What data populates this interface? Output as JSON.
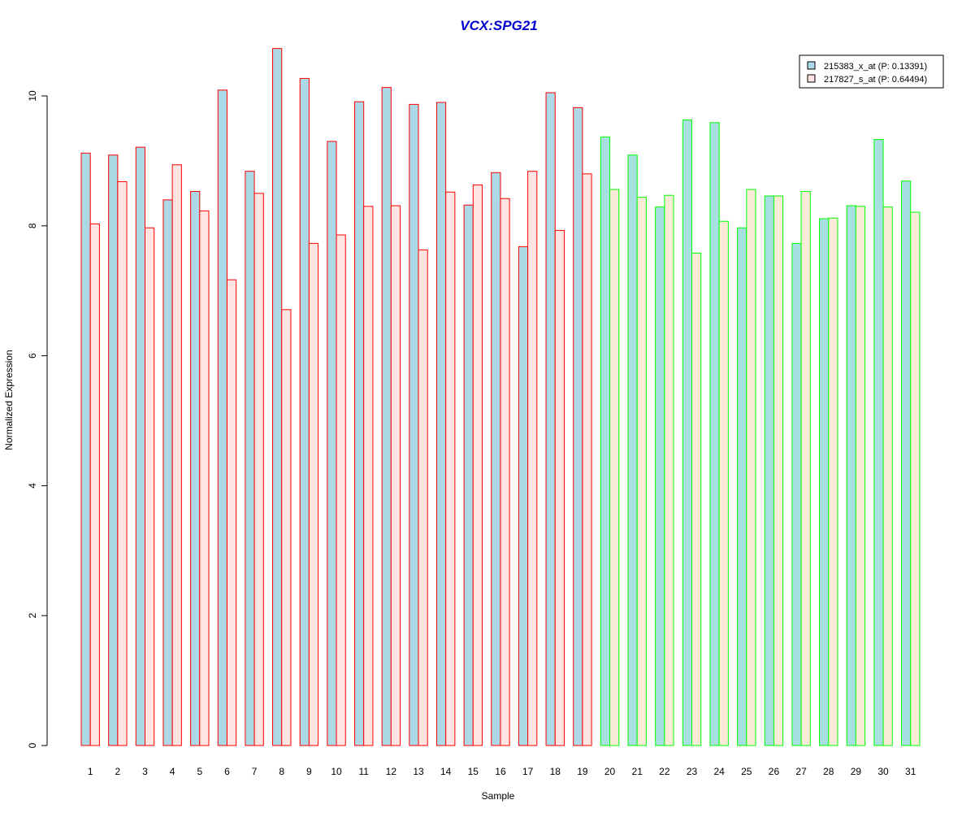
{
  "chart_data": {
    "type": "bar",
    "title": "VCX:SPG21",
    "xlabel": "Sample",
    "ylabel": "Normalized Expression",
    "ylim": [
      0,
      10.75
    ],
    "yticks": [
      0,
      2,
      4,
      6,
      8,
      10
    ],
    "categories": [
      "1",
      "2",
      "3",
      "4",
      "5",
      "6",
      "7",
      "8",
      "9",
      "10",
      "11",
      "12",
      "13",
      "14",
      "15",
      "16",
      "17",
      "18",
      "19",
      "20",
      "21",
      "22",
      "23",
      "24",
      "25",
      "26",
      "27",
      "28",
      "29",
      "30",
      "31"
    ],
    "series": [
      {
        "name": "215383_x_at (P: 0.13391)",
        "fill": "#add8e6",
        "values": [
          9.12,
          9.09,
          9.21,
          8.4,
          8.53,
          10.09,
          8.84,
          10.73,
          10.27,
          9.3,
          9.91,
          10.13,
          9.87,
          9.9,
          8.32,
          8.82,
          7.68,
          10.05,
          9.82,
          9.37,
          9.09,
          8.29,
          9.63,
          9.59,
          7.97,
          8.46,
          7.73,
          8.11,
          8.31,
          9.33,
          8.69
        ]
      },
      {
        "name": "217827_s_at (P: 0.64494)",
        "fill": "#ffe4e1",
        "values": [
          8.03,
          8.68,
          7.97,
          8.94,
          8.23,
          7.17,
          8.5,
          6.71,
          7.73,
          7.86,
          8.3,
          8.31,
          7.63,
          8.52,
          8.63,
          8.42,
          8.84,
          7.93,
          8.8,
          8.56,
          8.44,
          8.47,
          7.58,
          8.07,
          8.56,
          8.46,
          8.53,
          8.12,
          8.3,
          8.29,
          8.21
        ]
      }
    ],
    "group_border_colors": {
      "group1": "#ff0000",
      "group2": "#00ff00"
    },
    "group1_samples": 19,
    "group2_fill_series2": "#faebd7",
    "title_color": "#0000cd",
    "legend_position": "top-right"
  }
}
